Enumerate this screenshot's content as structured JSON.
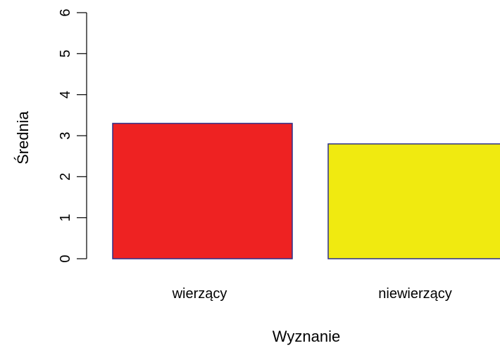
{
  "chart_data": {
    "type": "bar",
    "title": "",
    "xlabel": "Wyznanie",
    "ylabel": "Średnia",
    "categories": [
      "wierzący",
      "niewierzący"
    ],
    "values": [
      3.3,
      2.8
    ],
    "bar_colors": [
      "#ee2222",
      "#f0ea10"
    ],
    "bar_border_color": "#2b2f8a",
    "ylim": [
      0,
      6
    ],
    "yticks": [
      "0",
      "1",
      "2",
      "3",
      "4",
      "5",
      "6"
    ],
    "grid": false,
    "legend": "none"
  }
}
